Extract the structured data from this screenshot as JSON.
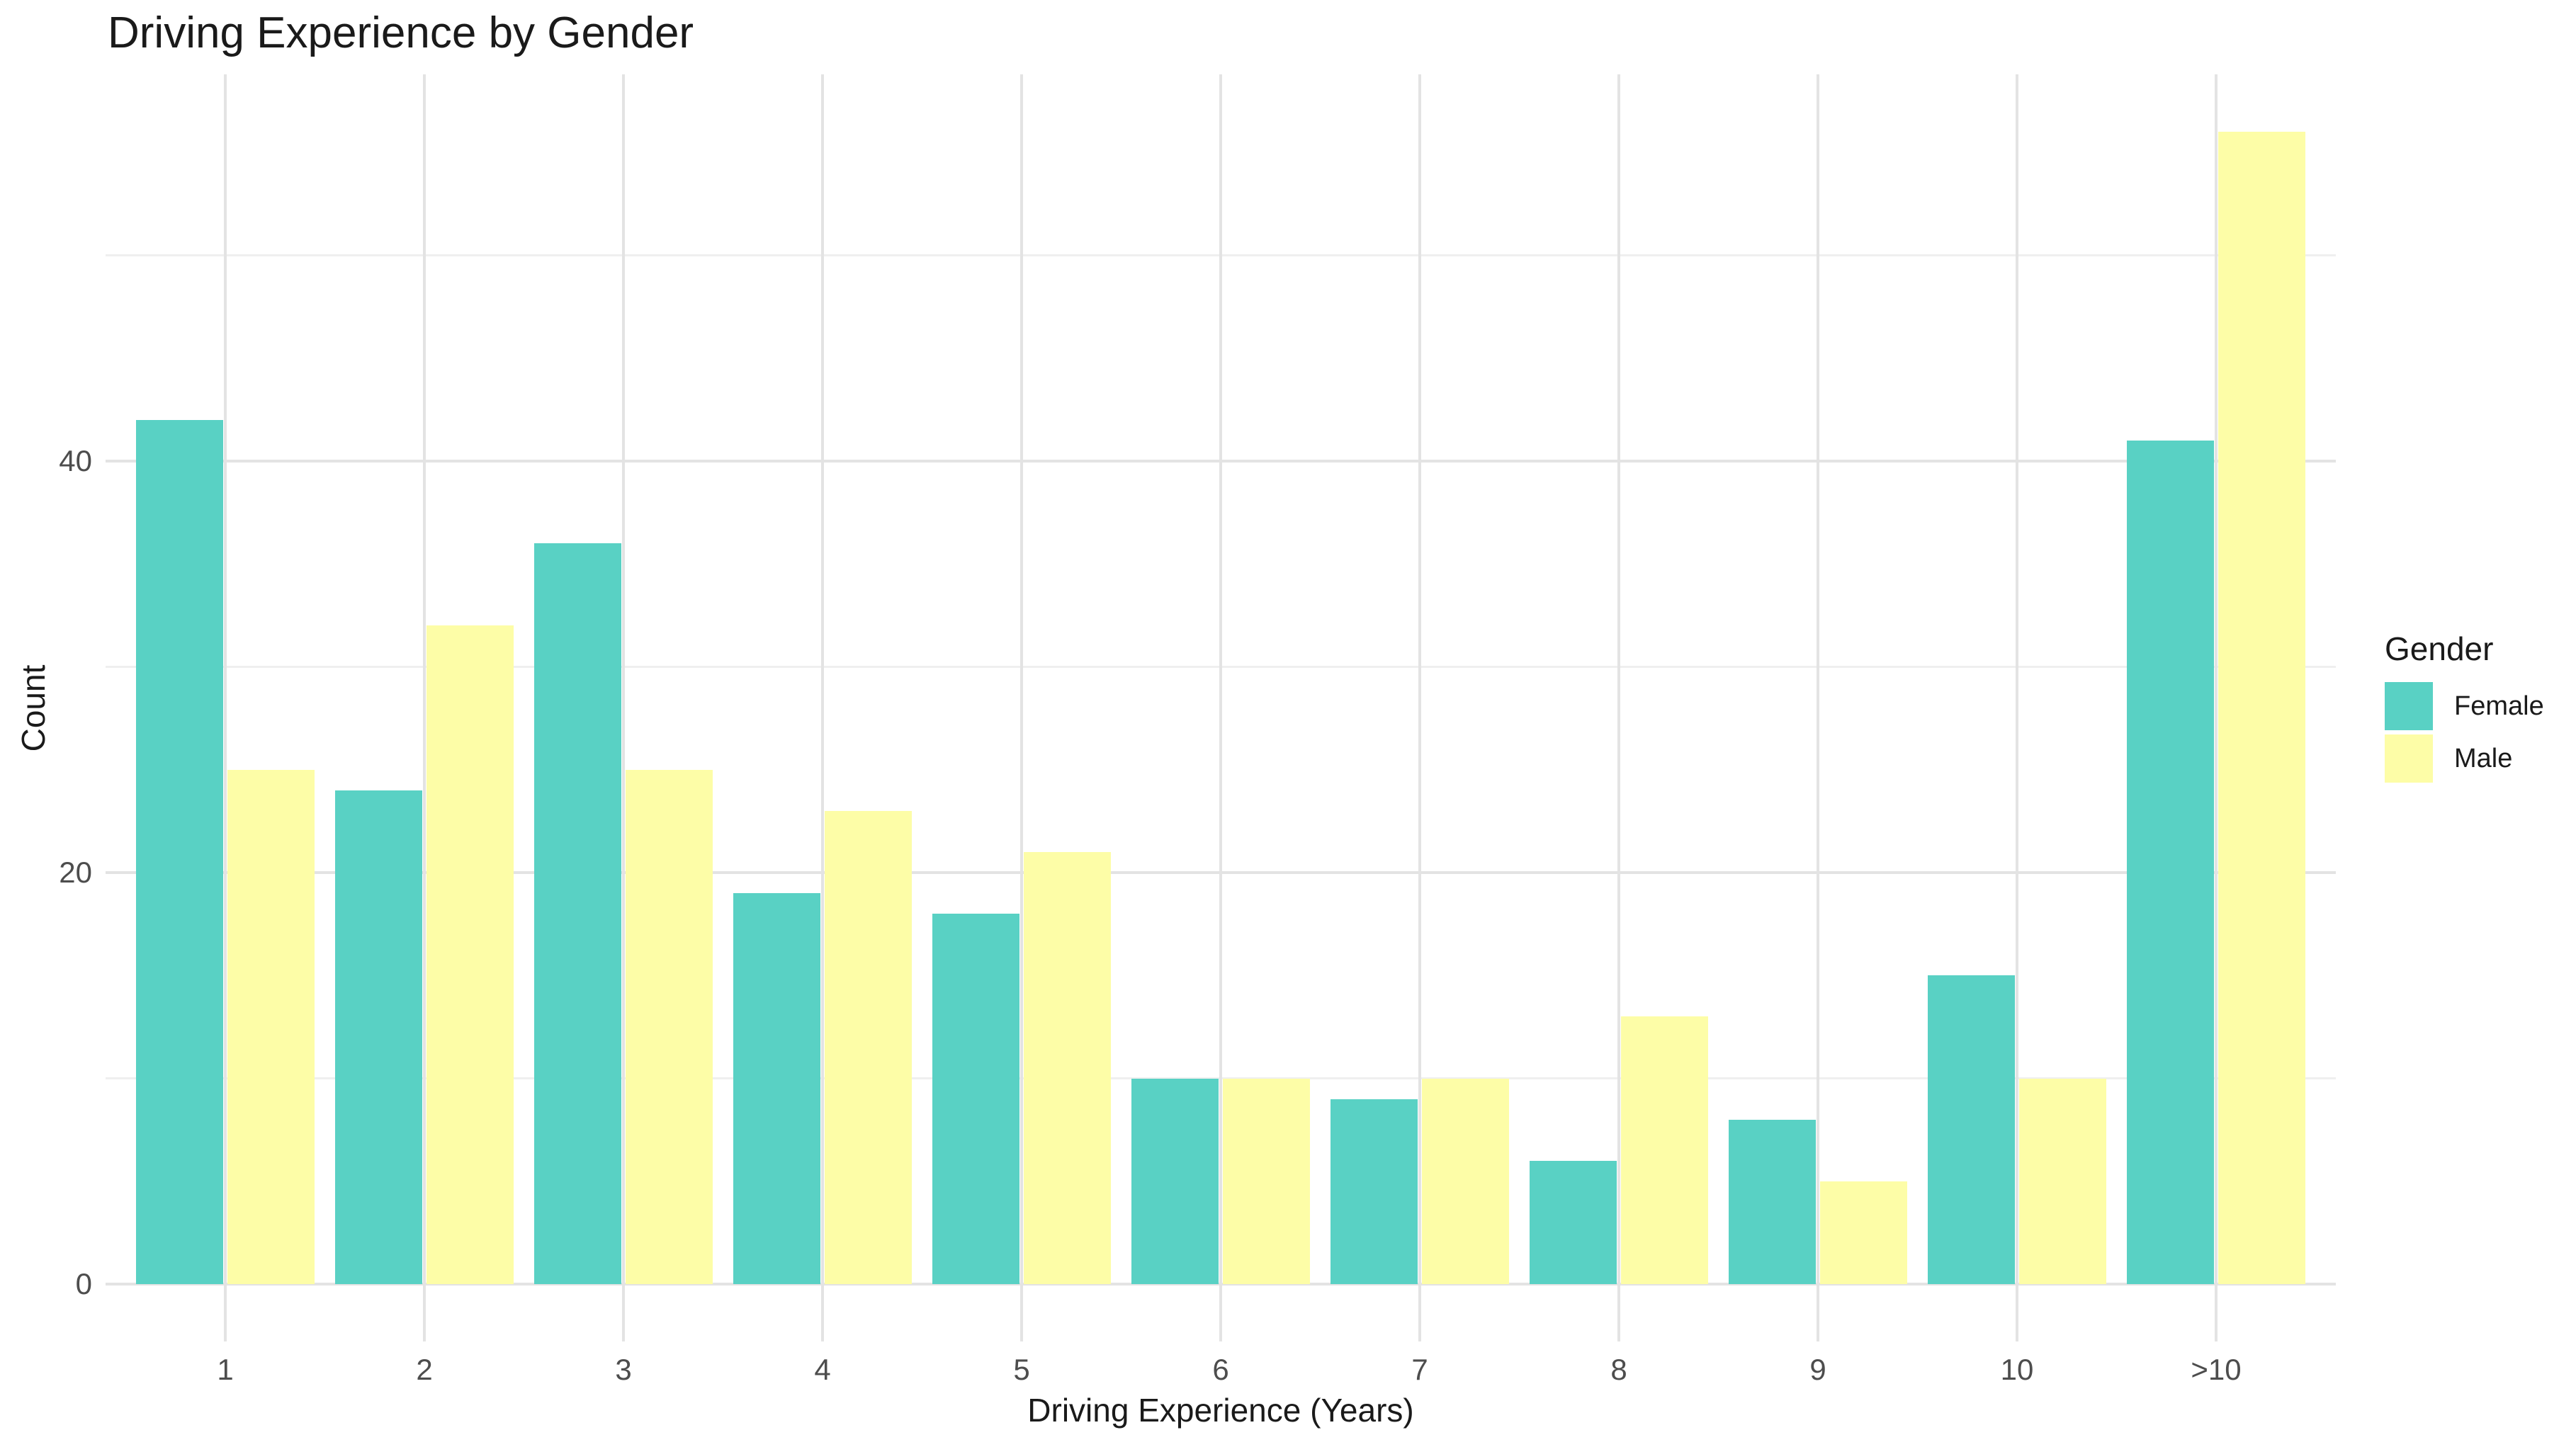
{
  "chart_data": {
    "type": "bar",
    "title": "Driving Experience by Gender",
    "xlabel": "Driving Experience (Years)",
    "ylabel": "Count",
    "categories": [
      "1",
      "2",
      "3",
      "4",
      "5",
      "6",
      "7",
      "8",
      "9",
      "10",
      ">10"
    ],
    "series": [
      {
        "name": "Female",
        "color": "#59d1c4",
        "values": [
          42,
          24,
          36,
          19,
          18,
          10,
          9,
          6,
          8,
          15,
          41
        ]
      },
      {
        "name": "Male",
        "color": "#fdfda7",
        "values": [
          25,
          32,
          25,
          23,
          21,
          10,
          10,
          13,
          5,
          10,
          56
        ]
      }
    ],
    "y_breaks": [
      0,
      20,
      40
    ],
    "y_minor_breaks": [
      10,
      30,
      50
    ],
    "ylim": [
      0,
      58.8
    ],
    "grid": "on",
    "background": "#ffffff",
    "legend": {
      "title": "Gender",
      "position": "right"
    }
  }
}
